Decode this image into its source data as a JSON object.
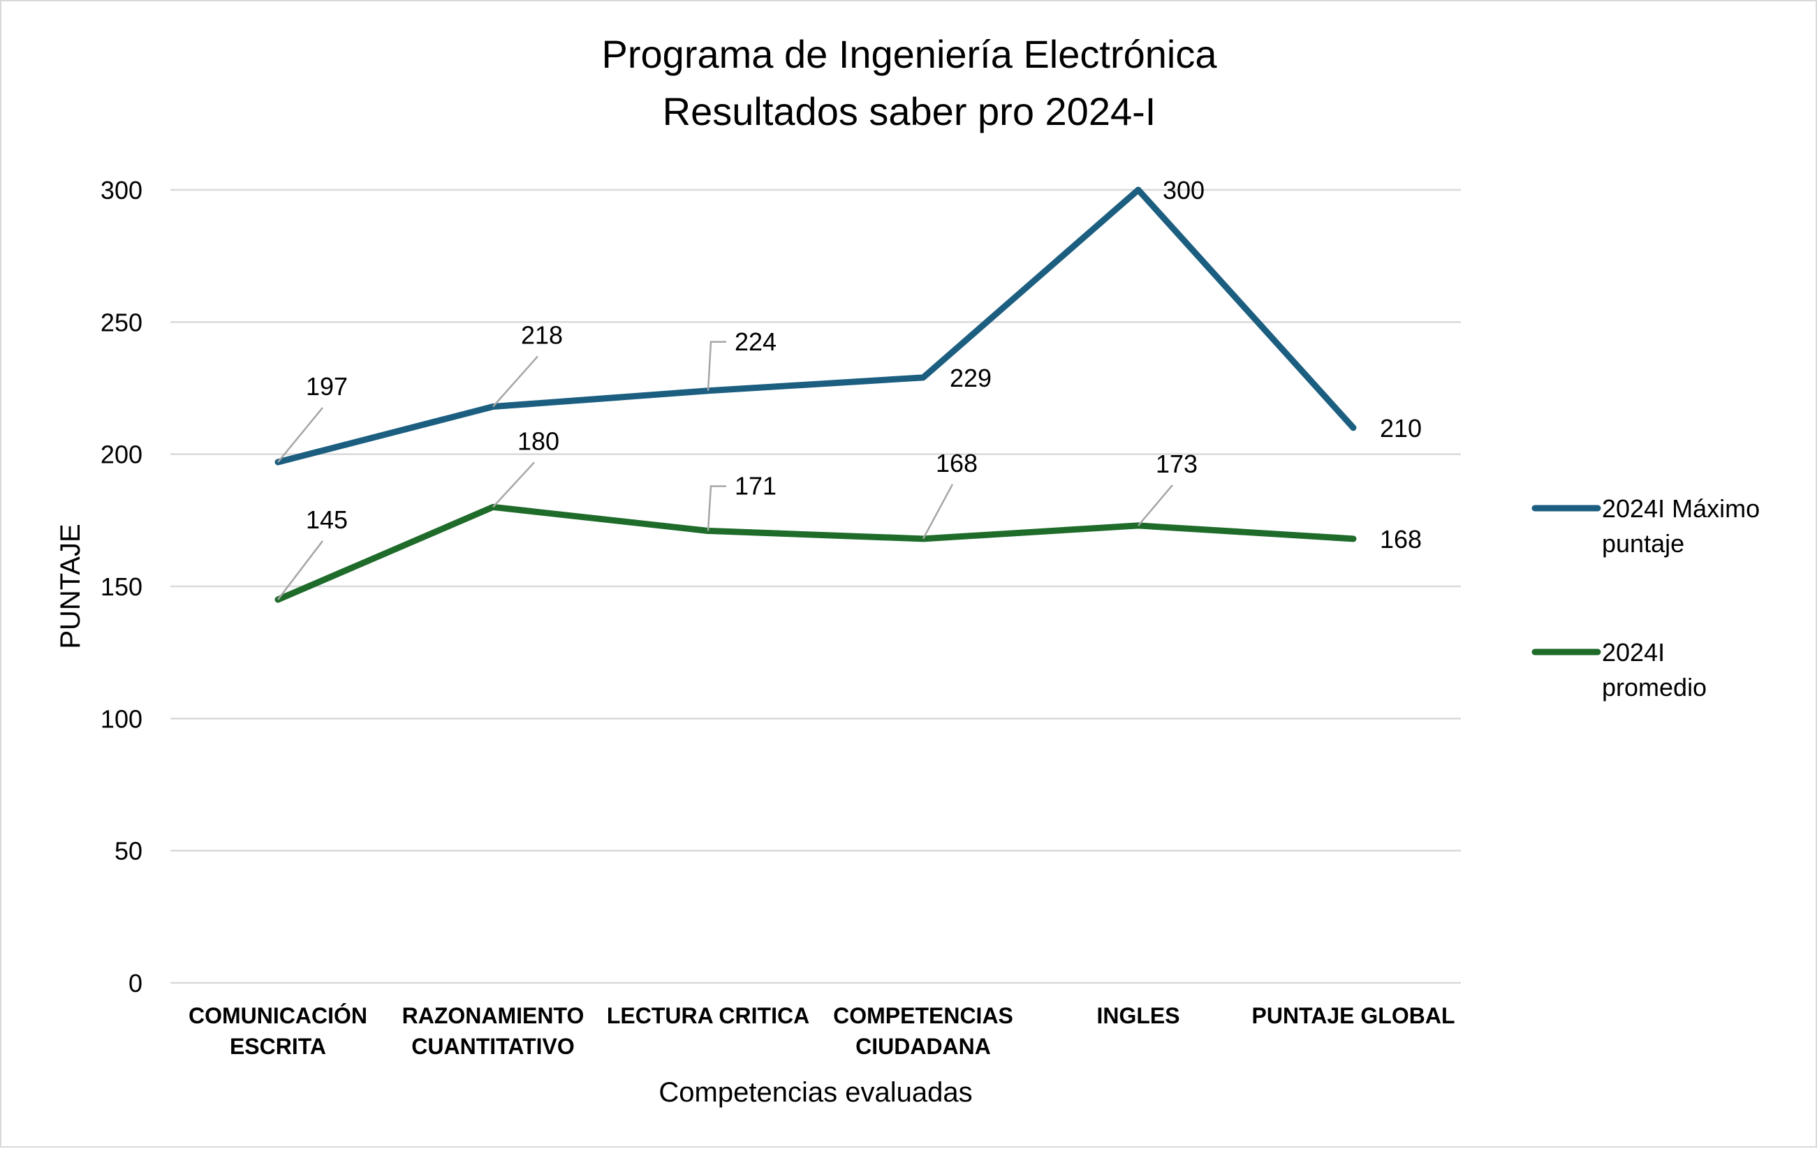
{
  "chart_data": {
    "type": "line",
    "title": [
      "Programa de Ingeniería Electrónica",
      "Resultados saber pro 2024-I"
    ],
    "xlabel": "Competencias evaluadas",
    "ylabel": "PUNTAJE",
    "ylim": [
      0,
      300
    ],
    "yticks": [
      0,
      50,
      100,
      150,
      200,
      250,
      300
    ],
    "grid": true,
    "legend_position": "right",
    "categories": [
      [
        "COMUNICACIÓN",
        "ESCRITA"
      ],
      [
        "RAZONAMIENTO",
        "CUANTITATIVO"
      ],
      [
        "LECTURA CRITICA"
      ],
      [
        "COMPETENCIAS",
        "CIUDADANA"
      ],
      [
        "INGLES"
      ],
      [
        "PUNTAJE GLOBAL"
      ]
    ],
    "series": [
      {
        "name": [
          "2024I Máximo",
          "puntaje"
        ],
        "color": "#1b5e80",
        "values": [
          197,
          218,
          224,
          229,
          300,
          210
        ]
      },
      {
        "name": [
          "2024I",
          "promedio"
        ],
        "color": "#1e6b2a",
        "values": [
          145,
          180,
          171,
          168,
          173,
          168
        ]
      }
    ]
  }
}
